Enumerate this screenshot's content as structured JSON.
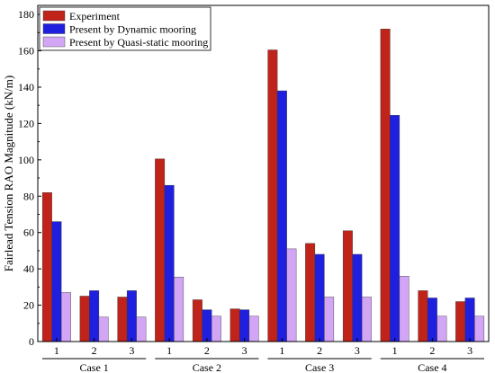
{
  "chart_data": {
    "type": "bar",
    "ylabel": "Fairlead Tension RAO Magnitude (kN/m)",
    "ylim": [
      0,
      185
    ],
    "yticks": [
      0,
      20,
      40,
      60,
      80,
      100,
      120,
      140,
      160,
      180
    ],
    "groups": [
      "Case 1",
      "Case 2",
      "Case 3",
      "Case 4"
    ],
    "subcategories": [
      "1",
      "2",
      "3"
    ],
    "series": [
      {
        "name": "Experiment",
        "color": "#c0231a",
        "values": [
          [
            82,
            25,
            24.5
          ],
          [
            100.5,
            23,
            18
          ],
          [
            160.5,
            54,
            61
          ],
          [
            172,
            28,
            22
          ]
        ]
      },
      {
        "name": "Present by Dynamic mooring",
        "color": "#1f1fe0",
        "values": [
          [
            66,
            28,
            28
          ],
          [
            86,
            17.5,
            17.5
          ],
          [
            138,
            48,
            48
          ],
          [
            124.5,
            24,
            24
          ]
        ]
      },
      {
        "name": "Present by Quasi-static mooring",
        "color": "#d2a6f4",
        "values": [
          [
            27,
            13.5,
            13.5
          ],
          [
            35.5,
            14,
            14
          ],
          [
            51,
            24.5,
            24.5
          ],
          [
            36,
            14,
            14
          ]
        ]
      }
    ],
    "legend_position": "top-left",
    "grid": false
  }
}
